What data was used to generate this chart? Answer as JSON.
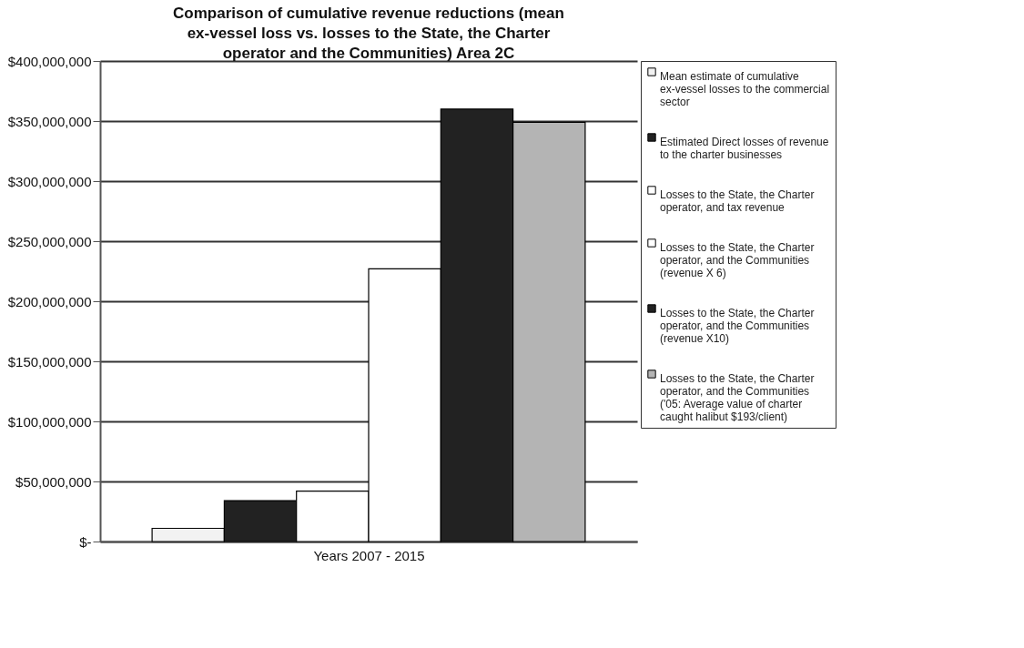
{
  "chart_data": {
    "type": "bar",
    "title": "Comparison of cumulative revenue reductions (mean ex-vessel loss vs. losses to the State, the Charter operator and the Communities) Area 2C",
    "xlabel": "Years 2007 - 2015",
    "categories": [
      null
    ],
    "series": [
      {
        "name": "Mean estimate of cumulative ex-vessel losses to the commercial sector",
        "color": "#f2f2f2",
        "values": [
          11000000
        ]
      },
      {
        "name": "Estimated Direct losses of revenue to the charter businesses",
        "color": "#222222",
        "values": [
          34000000
        ]
      },
      {
        "name": "Losses to the State, the Charter operator, and tax revenue",
        "color": "#ffffff",
        "values": [
          42000000
        ]
      },
      {
        "name": "Losses to the State, the Charter operator, and the Communities (revenue X 6)",
        "color": "#ffffff",
        "values": [
          227000000
        ]
      },
      {
        "name": "Losses to the State, the Charter operator, and the Communities (revenue X10)",
        "color": "#222222",
        "values": [
          360000000
        ]
      },
      {
        "name": "Losses to the State, the Charter operator, and the Communities ('05: Average value of charter caught halibut $193/client)",
        "color": "#b4b4b4",
        "values": [
          349000000
        ]
      }
    ],
    "ylim": [
      0,
      400000000
    ],
    "yticks": [
      {
        "value": 0,
        "label": "$-"
      },
      {
        "value": 50000000,
        "label": "$50,000,000"
      },
      {
        "value": 100000000,
        "label": "$100,000,000"
      },
      {
        "value": 150000000,
        "label": "$150,000,000"
      },
      {
        "value": 200000000,
        "label": "$200,000,000"
      },
      {
        "value": 250000000,
        "label": "$250,000,000"
      },
      {
        "value": 300000000,
        "label": "$300,000,000"
      },
      {
        "value": 350000000,
        "label": "$350,000,000"
      },
      {
        "value": 400000000,
        "label": "$400,000,000"
      }
    ],
    "grid": "y",
    "legend": "right"
  }
}
